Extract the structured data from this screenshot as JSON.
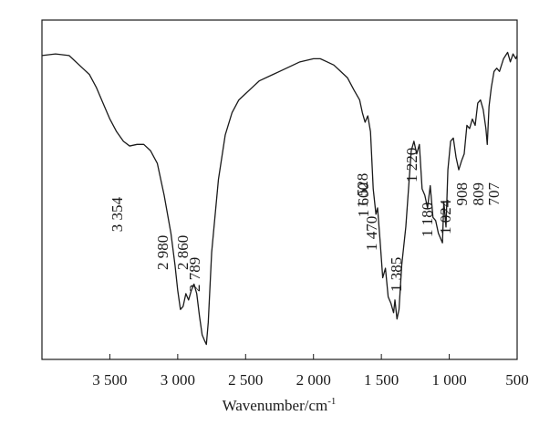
{
  "chart_data": {
    "type": "line",
    "xlabel": "Wavenumber/cm",
    "xlabel_superscript": "-1",
    "xlim": [
      4000,
      500
    ],
    "x_reversed": true,
    "ylabel": "",
    "y_ticks_shown": false,
    "grid": false,
    "xticks": [
      {
        "value": 3500,
        "label": "3 500"
      },
      {
        "value": 3000,
        "label": "3 000"
      },
      {
        "value": 2500,
        "label": "2 500"
      },
      {
        "value": 2000,
        "label": "2 000"
      },
      {
        "value": 1500,
        "label": "1 500"
      },
      {
        "value": 1000,
        "label": "1 000"
      },
      {
        "value": 500,
        "label": "500"
      }
    ],
    "peak_labels": [
      {
        "value": 3354,
        "label": "3 354"
      },
      {
        "value": 2980,
        "label": "2 980"
      },
      {
        "value": 2860,
        "label": "2 860"
      },
      {
        "value": 2789,
        "label": "2 789"
      },
      {
        "value": 1600,
        "label": "1 600"
      },
      {
        "value": 1528,
        "label": "1 528"
      },
      {
        "value": 1470,
        "label": "1 470"
      },
      {
        "value": 1385,
        "label": "1 385"
      },
      {
        "value": 1220,
        "label": "1 220"
      },
      {
        "value": 1180,
        "label": "1 180"
      },
      {
        "value": 1024,
        "label": "1 024"
      },
      {
        "value": 908,
        "label": "908"
      },
      {
        "value": 809,
        "label": "809"
      },
      {
        "value": 707,
        "label": "707"
      }
    ],
    "series": [
      {
        "color": "#1a1a1a",
        "x": [
          4000,
          3900,
          3800,
          3700,
          3650,
          3600,
          3550,
          3500,
          3450,
          3400,
          3354,
          3300,
          3250,
          3200,
          3150,
          3100,
          3050,
          3020,
          3000,
          2980,
          2960,
          2940,
          2920,
          2900,
          2880,
          2860,
          2840,
          2820,
          2800,
          2789,
          2775,
          2750,
          2700,
          2650,
          2600,
          2550,
          2500,
          2450,
          2400,
          2300,
          2250,
          2200,
          2150,
          2100,
          2000,
          1950,
          1900,
          1850,
          1800,
          1750,
          1700,
          1660,
          1640,
          1620,
          1600,
          1580,
          1560,
          1540,
          1528,
          1510,
          1490,
          1470,
          1450,
          1430,
          1410,
          1400,
          1385,
          1370,
          1350,
          1320,
          1300,
          1280,
          1260,
          1240,
          1220,
          1200,
          1180,
          1160,
          1140,
          1120,
          1100,
          1080,
          1050,
          1040,
          1024,
          1010,
          990,
          970,
          950,
          930,
          908,
          890,
          870,
          850,
          830,
          809,
          790,
          770,
          750,
          730,
          720,
          707,
          690,
          670,
          650,
          630,
          600,
          570,
          550,
          530,
          510,
          500
        ],
        "y": [
          0.94,
          0.945,
          0.94,
          0.9,
          0.88,
          0.84,
          0.79,
          0.74,
          0.7,
          0.67,
          0.655,
          0.66,
          0.66,
          0.64,
          0.6,
          0.5,
          0.38,
          0.28,
          0.2,
          0.14,
          0.15,
          0.19,
          0.17,
          0.2,
          0.22,
          0.19,
          0.12,
          0.06,
          0.04,
          0.03,
          0.1,
          0.32,
          0.55,
          0.69,
          0.76,
          0.8,
          0.82,
          0.84,
          0.86,
          0.88,
          0.89,
          0.9,
          0.91,
          0.92,
          0.93,
          0.93,
          0.92,
          0.91,
          0.89,
          0.87,
          0.83,
          0.8,
          0.76,
          0.73,
          0.75,
          0.7,
          0.52,
          0.44,
          0.46,
          0.36,
          0.24,
          0.27,
          0.18,
          0.16,
          0.13,
          0.17,
          0.11,
          0.14,
          0.28,
          0.4,
          0.52,
          0.64,
          0.67,
          0.63,
          0.66,
          0.52,
          0.5,
          0.46,
          0.53,
          0.43,
          0.42,
          0.38,
          0.35,
          0.48,
          0.4,
          0.58,
          0.67,
          0.68,
          0.62,
          0.58,
          0.61,
          0.63,
          0.72,
          0.71,
          0.74,
          0.72,
          0.79,
          0.8,
          0.77,
          0.71,
          0.66,
          0.78,
          0.84,
          0.89,
          0.9,
          0.89,
          0.93,
          0.95,
          0.92,
          0.945,
          0.93,
          0.94
        ]
      }
    ]
  }
}
